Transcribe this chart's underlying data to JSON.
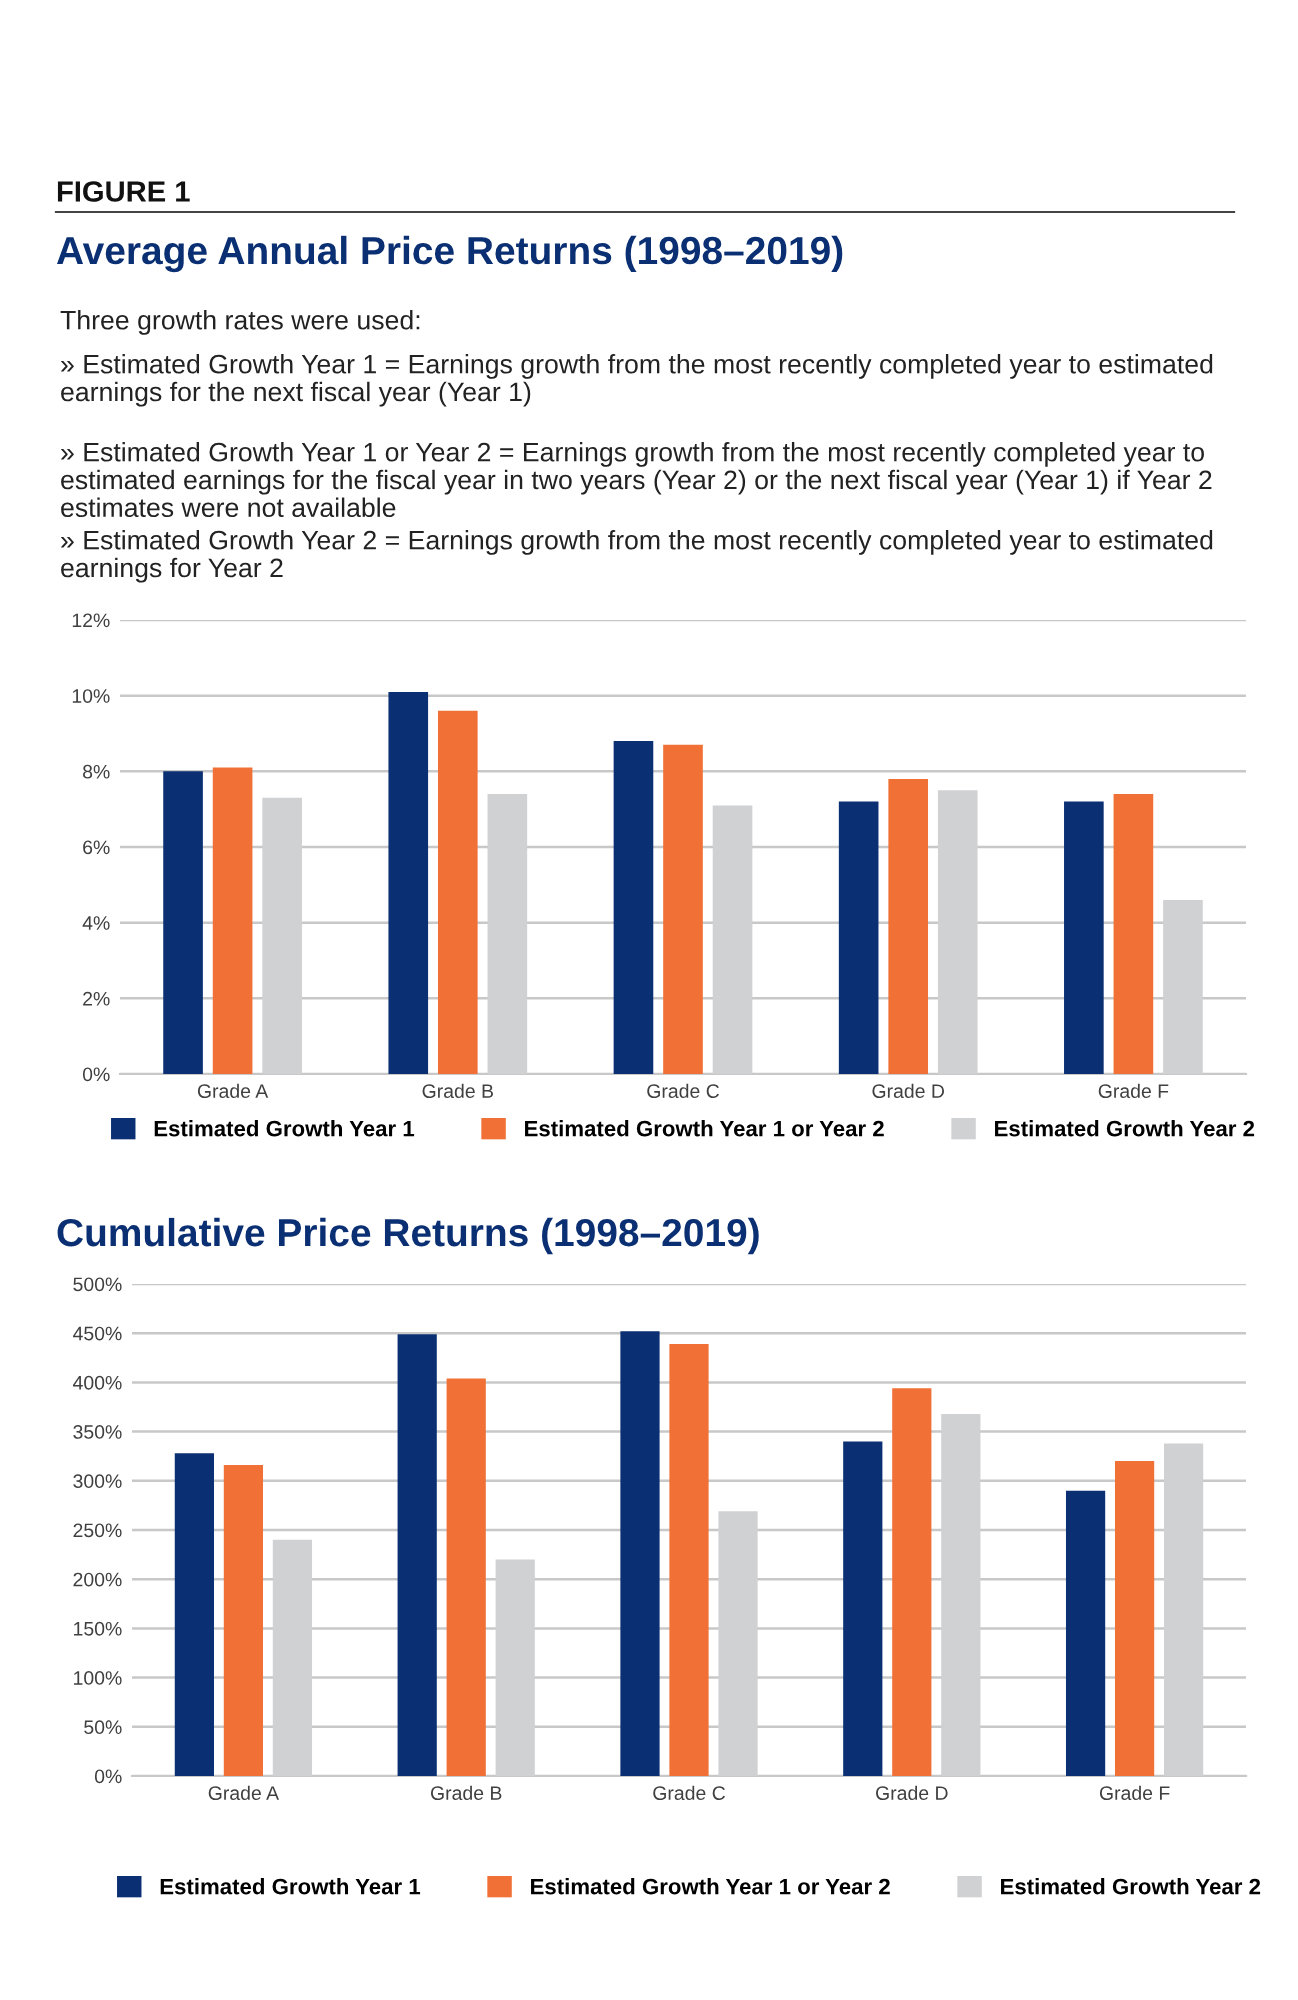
{
  "chart_data": [
    {
      "type": "bar",
      "title": "Average Annual Price Returns (1998–2019)",
      "annotations": [
        "FIGURE 1",
        "Three growth rates were used:",
        "» Estimated Growth Year 1 = Earnings growth from the most recently completed year to estimated earnings for the next fiscal year (Year 1)",
        "» Estimated Growth Year 1 or Year 2 = Earnings growth from the most recently completed year to estimated earnings for the fiscal year in two years (Year 2) or the next fiscal year (Year 1) if Year 2 estimates were not available",
        "» Estimated Growth Year 2 = Earnings growth from the most recently completed year to estimated earnings for Year 2"
      ],
      "categories": [
        "Grade A",
        "Grade B",
        "Grade C",
        "Grade D",
        "Grade F"
      ],
      "series": [
        {
          "name": "Estimated Growth Year 1",
          "color": "#0a2f73",
          "values": [
            8.0,
            10.1,
            8.8,
            7.2,
            7.2
          ]
        },
        {
          "name": "Estimated Growth Year 1 or Year 2",
          "color": "#f07035",
          "values": [
            8.1,
            9.6,
            8.7,
            7.8,
            7.4
          ]
        },
        {
          "name": "Estimated Growth Year 2",
          "color": "#d0d1d3",
          "values": [
            7.3,
            7.4,
            7.1,
            7.5,
            4.6
          ]
        }
      ],
      "ylim": [
        0,
        12
      ],
      "yticks": [
        {
          "value": 0,
          "label": "0%"
        },
        {
          "value": 2,
          "label": "2%"
        },
        {
          "value": 4,
          "label": "4%"
        },
        {
          "value": 6,
          "label": "6%"
        },
        {
          "value": 8,
          "label": "8%"
        },
        {
          "value": 10,
          "label": "10%"
        },
        {
          "value": 12,
          "label": "12%"
        }
      ],
      "grid": "y",
      "legend": "bottom"
    },
    {
      "type": "bar",
      "title": "Cumulative Price Returns (1998–2019)",
      "categories": [
        "Grade A",
        "Grade B",
        "Grade C",
        "Grade D",
        "Grade F"
      ],
      "series": [
        {
          "name": "Estimated Growth Year 1",
          "color": "#0a2f73",
          "values": [
            328,
            449,
            452,
            340,
            290
          ]
        },
        {
          "name": "Estimated Growth Year 1 or Year 2",
          "color": "#f07035",
          "values": [
            316,
            404,
            439,
            394,
            320
          ]
        },
        {
          "name": "Estimated Growth Year 2",
          "color": "#d0d1d3",
          "values": [
            240,
            220,
            269,
            368,
            338
          ]
        }
      ],
      "ylim": [
        0,
        500
      ],
      "yticks": [
        {
          "value": 0,
          "label": "0%"
        },
        {
          "value": 50,
          "label": "50%"
        },
        {
          "value": 100,
          "label": "100%"
        },
        {
          "value": 150,
          "label": "150%"
        },
        {
          "value": 200,
          "label": "200%"
        },
        {
          "value": 250,
          "label": "250%"
        },
        {
          "value": 300,
          "label": "300%"
        },
        {
          "value": 350,
          "label": "350%"
        },
        {
          "value": 400,
          "label": "400%"
        },
        {
          "value": 450,
          "label": "450%"
        },
        {
          "value": 500,
          "label": "500%"
        }
      ],
      "grid": "y",
      "legend": "bottom"
    }
  ]
}
